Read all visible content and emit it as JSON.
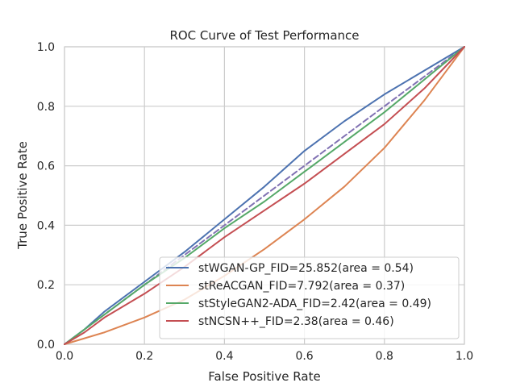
{
  "chart_data": {
    "type": "line",
    "title": "ROC Curve of Test Performance",
    "xlabel": "False Positive Rate",
    "ylabel": "True Positive Rate",
    "xlim": [
      0.0,
      1.0
    ],
    "ylim": [
      0.0,
      1.0
    ],
    "xticks": [
      "0.0",
      "0.2",
      "0.4",
      "0.6",
      "0.8",
      "1.0"
    ],
    "yticks": [
      "0.0",
      "0.2",
      "0.4",
      "0.6",
      "0.8",
      "1.0"
    ],
    "grid": true,
    "legend_position": "lower-right",
    "series": [
      {
        "name": "stWGAN-GP_FID=25.852(area = 0.54)",
        "color": "#4c72b0",
        "x": [
          0.0,
          0.05,
          0.1,
          0.15,
          0.2,
          0.3,
          0.4,
          0.5,
          0.6,
          0.7,
          0.8,
          0.9,
          0.95,
          1.0
        ],
        "y": [
          0.0,
          0.05,
          0.11,
          0.16,
          0.21,
          0.31,
          0.42,
          0.53,
          0.65,
          0.75,
          0.84,
          0.92,
          0.96,
          1.0
        ]
      },
      {
        "name": "stReACGAN_FID=7.792(area = 0.37)",
        "color": "#dd8452",
        "x": [
          0.0,
          0.05,
          0.1,
          0.2,
          0.3,
          0.4,
          0.5,
          0.6,
          0.7,
          0.8,
          0.85,
          0.9,
          0.95,
          1.0
        ],
        "y": [
          0.0,
          0.02,
          0.04,
          0.09,
          0.15,
          0.23,
          0.32,
          0.42,
          0.53,
          0.66,
          0.74,
          0.82,
          0.91,
          1.0
        ]
      },
      {
        "name": "stStyleGAN2-ADA_FID=2.42(area = 0.49)",
        "color": "#55a868",
        "x": [
          0.0,
          0.05,
          0.1,
          0.2,
          0.3,
          0.4,
          0.5,
          0.6,
          0.7,
          0.8,
          0.9,
          1.0
        ],
        "y": [
          0.0,
          0.05,
          0.1,
          0.2,
          0.29,
          0.39,
          0.48,
          0.58,
          0.68,
          0.78,
          0.89,
          1.0
        ]
      },
      {
        "name": "stNCSN++_FID=2.38(area = 0.46)",
        "color": "#c44e52",
        "x": [
          0.0,
          0.05,
          0.1,
          0.2,
          0.3,
          0.4,
          0.5,
          0.6,
          0.7,
          0.8,
          0.9,
          1.0
        ],
        "y": [
          0.0,
          0.04,
          0.09,
          0.17,
          0.26,
          0.36,
          0.45,
          0.54,
          0.64,
          0.74,
          0.86,
          1.0
        ]
      },
      {
        "name": "",
        "color": "#8172b3",
        "dashed": true,
        "x": [
          0.0,
          1.0
        ],
        "y": [
          0.0,
          1.0
        ]
      }
    ]
  }
}
